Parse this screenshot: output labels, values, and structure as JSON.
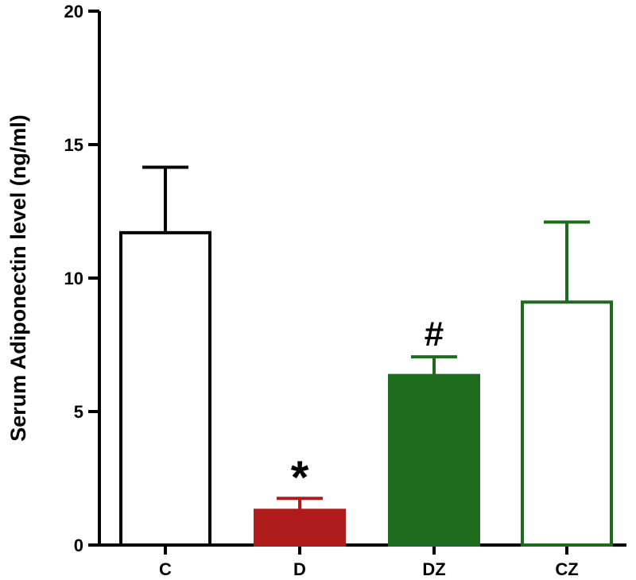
{
  "chart_data": {
    "type": "bar",
    "title": "",
    "xlabel": "",
    "ylabel": "Serum Adiponectin level (ng/ml)",
    "ylim": [
      0,
      20
    ],
    "yticks": [
      0,
      5,
      10,
      15,
      20
    ],
    "grid": false,
    "categories": [
      "C",
      "D",
      "DZ",
      "CZ"
    ],
    "values": [
      11.7,
      1.3,
      6.35,
      9.1
    ],
    "errors": [
      2.45,
      0.45,
      0.7,
      3.0
    ],
    "annotations": [
      "",
      "*",
      "#",
      ""
    ],
    "styles": [
      {
        "fill": "#ffffff",
        "stroke": "#000000"
      },
      {
        "fill": "#b01b1b",
        "stroke": "#b01b1b"
      },
      {
        "fill": "#1e6b1e",
        "stroke": "#1e6b1e"
      },
      {
        "fill": "#ffffff",
        "stroke": "#1e6b1e"
      }
    ]
  }
}
